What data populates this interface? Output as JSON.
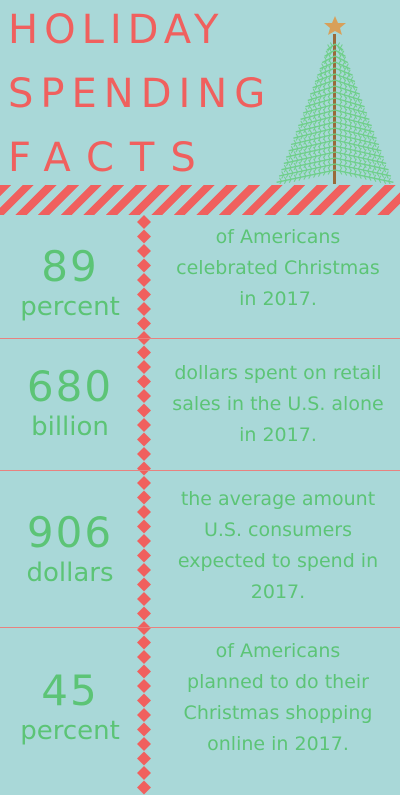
{
  "header": {
    "title_line1": "HOLIDAY",
    "title_line2": "SPENDING",
    "title_line3": "FACTS"
  },
  "colors": {
    "background": "#a9d8d8",
    "accent_red": "#f0605e",
    "text_green": "#5cc476",
    "tree_green": "#6fcf8a",
    "trunk_brown": "#9a6a3a",
    "star_gold": "#d8a05a"
  },
  "icons": {
    "tree": "christmas-tree-icon",
    "star": "star-icon"
  },
  "facts": [
    {
      "number": "89",
      "unit": "percent",
      "desc_lines": [
        "of Americans",
        "celebrated Christmas",
        "in 2017."
      ]
    },
    {
      "number": "680",
      "unit": "billion",
      "desc_lines": [
        "dollars spent on retail",
        "sales in the U.S. alone",
        "in 2017."
      ]
    },
    {
      "number": "906",
      "unit": "dollars",
      "desc_lines": [
        "the average amount",
        "U.S. consumers",
        "expected to spend in",
        "2017."
      ]
    },
    {
      "number": "45",
      "unit": "percent",
      "desc_lines": [
        "of Americans",
        "planned to do their",
        "Christmas shopping",
        "online in 2017."
      ]
    }
  ]
}
